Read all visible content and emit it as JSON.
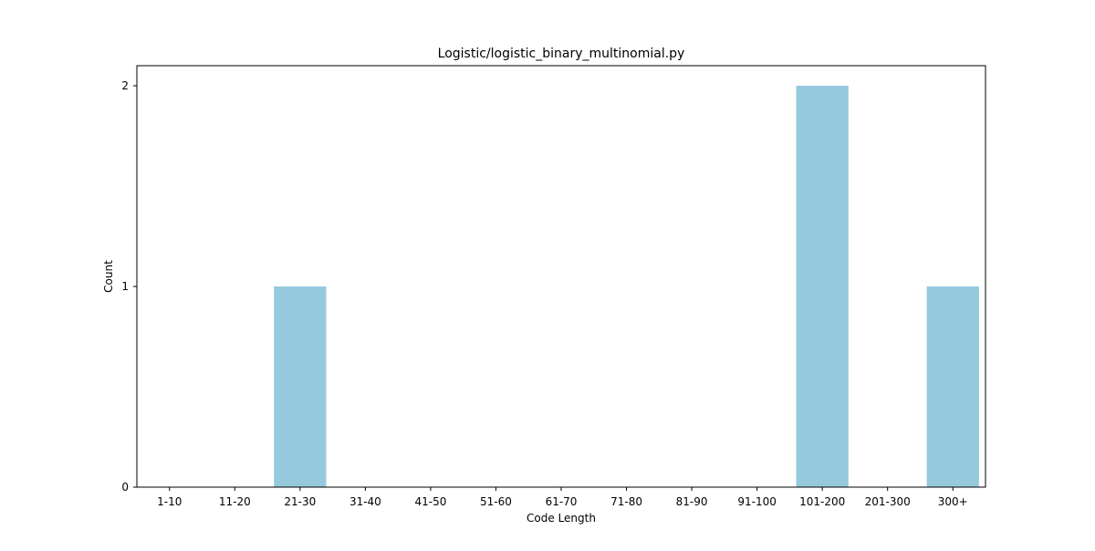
{
  "chart_data": {
    "type": "bar",
    "title": "Logistic/logistic_binary_multinomial.py",
    "xlabel": "Code Length",
    "ylabel": "Count",
    "categories": [
      "1-10",
      "11-20",
      "21-30",
      "31-40",
      "41-50",
      "51-60",
      "61-70",
      "71-80",
      "81-90",
      "91-100",
      "101-200",
      "201-300",
      "300+"
    ],
    "values": [
      0,
      0,
      1,
      0,
      0,
      0,
      0,
      0,
      0,
      0,
      2,
      0,
      1
    ],
    "ylim": [
      0,
      2.1
    ],
    "yticks": [
      0,
      1,
      2
    ],
    "grid": false,
    "bar_color": "#95c9dd"
  }
}
